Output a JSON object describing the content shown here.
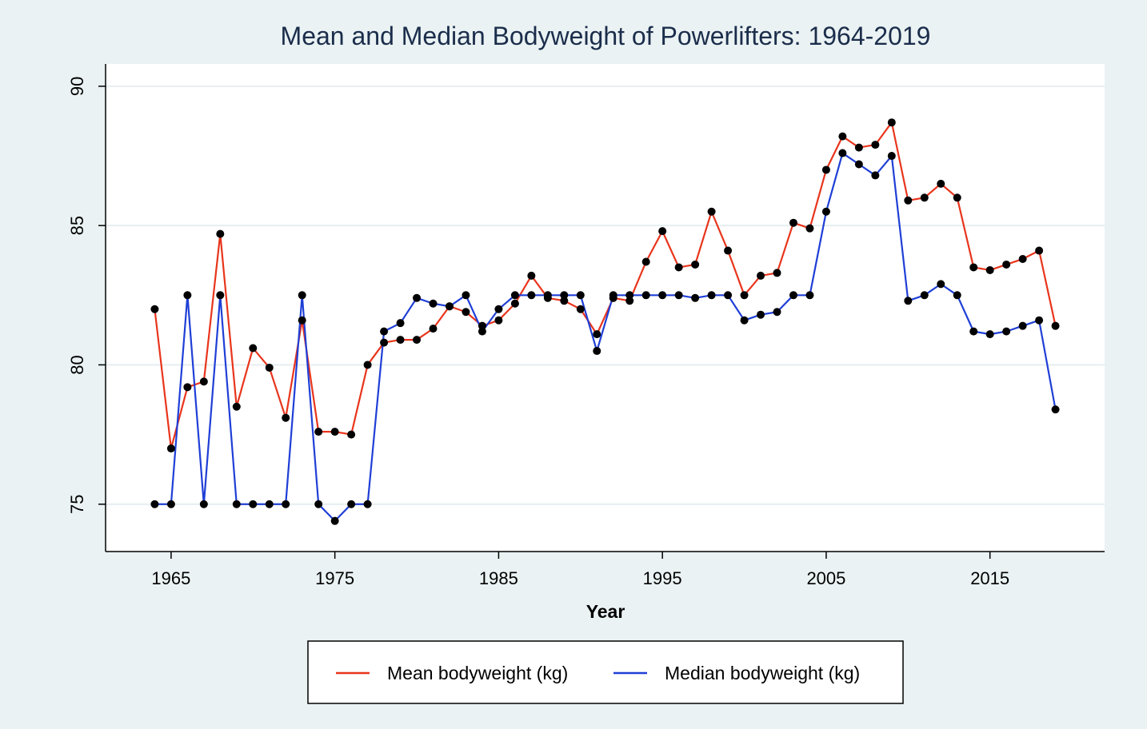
{
  "chart_data": {
    "type": "line",
    "title": "Mean and Median Bodyweight of Powerlifters: 1964-2019",
    "xlabel": "Year",
    "ylabel": "",
    "xlim": [
      1961,
      2022
    ],
    "ylim": [
      73.3,
      90.8
    ],
    "xticks": [
      1965,
      1975,
      1985,
      1995,
      2005,
      2015
    ],
    "yticks": [
      75,
      80,
      85,
      90
    ],
    "grid": true,
    "legend_position": "bottom",
    "x": [
      1964,
      1965,
      1966,
      1967,
      1968,
      1969,
      1970,
      1971,
      1972,
      1973,
      1974,
      1975,
      1976,
      1977,
      1978,
      1979,
      1980,
      1981,
      1982,
      1983,
      1984,
      1985,
      1986,
      1987,
      1988,
      1989,
      1990,
      1991,
      1992,
      1993,
      1994,
      1995,
      1996,
      1997,
      1998,
      1999,
      2000,
      2001,
      2002,
      2003,
      2004,
      2005,
      2006,
      2007,
      2008,
      2009,
      2010,
      2011,
      2012,
      2013,
      2014,
      2015,
      2016,
      2017,
      2018,
      2019
    ],
    "series": [
      {
        "name": "Mean bodyweight (kg)",
        "color": "#e8351c",
        "values": [
          82.0,
          77.0,
          79.2,
          79.4,
          84.7,
          78.5,
          80.6,
          79.9,
          78.1,
          81.6,
          77.6,
          77.6,
          77.5,
          80.0,
          80.8,
          80.9,
          80.9,
          81.3,
          82.1,
          81.9,
          81.4,
          81.6,
          82.2,
          83.2,
          82.4,
          82.3,
          82.0,
          81.1,
          82.4,
          82.3,
          83.7,
          84.8,
          83.5,
          83.6,
          85.5,
          84.1,
          82.5,
          83.2,
          83.3,
          85.1,
          84.9,
          87.0,
          88.2,
          87.8,
          87.9,
          88.7,
          85.9,
          86.0,
          86.5,
          86.0,
          83.5,
          83.4,
          83.6,
          83.8,
          84.1,
          81.4
        ]
      },
      {
        "name": "Median bodyweight (kg)",
        "color": "#1f3fd6",
        "values": [
          75.0,
          75.0,
          82.5,
          75.0,
          82.5,
          75.0,
          75.0,
          75.0,
          75.0,
          82.5,
          75.0,
          74.4,
          75.0,
          75.0,
          81.2,
          81.5,
          82.4,
          82.2,
          82.1,
          82.5,
          81.2,
          82.0,
          82.5,
          82.5,
          82.5,
          82.5,
          82.5,
          80.5,
          82.5,
          82.5,
          82.5,
          82.5,
          82.5,
          82.4,
          82.5,
          82.5,
          81.6,
          81.8,
          81.9,
          82.5,
          82.5,
          85.5,
          87.6,
          87.2,
          86.8,
          87.5,
          82.3,
          82.5,
          82.9,
          82.5,
          81.2,
          81.1,
          81.2,
          81.4,
          81.6,
          78.4
        ]
      }
    ]
  }
}
